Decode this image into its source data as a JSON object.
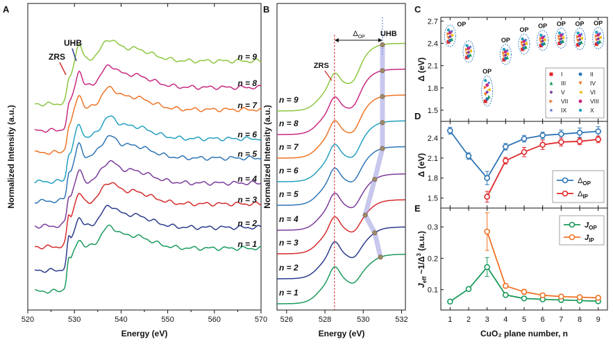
{
  "chart_data": [
    {
      "panel": "A",
      "type": "line",
      "xlabel": "Energy (eV)",
      "ylabel": "Normalized Intensity (a.u.)",
      "xlim": [
        520,
        570
      ],
      "xticks": [
        "520",
        "530",
        "540",
        "550",
        "560",
        "570"
      ],
      "series": [
        {
          "name": "n = 1",
          "color": "#1a9a5c"
        },
        {
          "name": "n = 2",
          "color": "#2b3a8c"
        },
        {
          "name": "n = 3",
          "color": "#d62a2a"
        },
        {
          "name": "n = 4",
          "color": "#7a3a9a"
        },
        {
          "name": "n = 5",
          "color": "#2e75b6"
        },
        {
          "name": "n = 6",
          "color": "#22a0c0"
        },
        {
          "name": "n = 7",
          "color": "#ee7324"
        },
        {
          "name": "n = 8",
          "color": "#c8287f"
        },
        {
          "name": "n = 9",
          "color": "#8cc63f"
        }
      ],
      "annotations": [
        {
          "text": "ZRS",
          "color": "#d62a2a"
        },
        {
          "text": "UHB",
          "color": "#2b3a8c"
        }
      ]
    },
    {
      "panel": "B",
      "type": "line",
      "xlabel": "Energy (eV)",
      "ylabel": "Normalized Intensity (a.u.)",
      "xlim": [
        525.5,
        532.2
      ],
      "xticks": [
        "526",
        "528",
        "530",
        "532"
      ],
      "zrs_energy": 528.5,
      "uhb_energy": 531.0,
      "peak_markers_ev": [
        530.9,
        530.6,
        530.1,
        530.6,
        531.0,
        531.0,
        531.0,
        531.0,
        531.0
      ],
      "annotations": [
        {
          "text": "ZRS",
          "color": "#d62a2a"
        },
        {
          "text": "UHB",
          "color": "#2b3a8c"
        },
        {
          "text": "Δ",
          "sub": "OP"
        }
      ]
    },
    {
      "panel": "C",
      "type": "scatter",
      "xlabel": "",
      "ylabel": "Δ (eV)",
      "xlim": [
        0.5,
        9.5
      ],
      "ylim": [
        1.35,
        2.75
      ],
      "yticks": [
        "1.5",
        "1.8",
        "2.1",
        "2.4",
        "2.7"
      ],
      "group_labels": [
        "OP",
        "OP",
        "OP",
        "OP",
        "OP",
        "OP",
        "OP",
        "OP"
      ],
      "legend": [
        {
          "label": "I",
          "color": "#e0262a",
          "marker": "square"
        },
        {
          "label": "II",
          "color": "#2e75b6",
          "marker": "circle"
        },
        {
          "label": "III",
          "color": "#1a9a5c",
          "marker": "triangle-up"
        },
        {
          "label": "IV",
          "color": "#ee7324",
          "marker": "triangle-down"
        },
        {
          "label": "V",
          "color": "#7a3a9a",
          "marker": "diamond"
        },
        {
          "label": "VI",
          "color": "#f2b705",
          "marker": "triangle-left"
        },
        {
          "label": "VII",
          "color": "#ee7324",
          "marker": "triangle-right"
        },
        {
          "label": "VIII",
          "color": "#c8287f",
          "marker": "circle"
        },
        {
          "label": "IX",
          "color": "#4b6bd0",
          "marker": "star"
        },
        {
          "label": "X",
          "color": "#22a0c0",
          "marker": "pentagon"
        }
      ],
      "groups": [
        {
          "n": 1,
          "center": 2.5,
          "spread": 0.08
        },
        {
          "n": 2,
          "center": 2.29,
          "spread": 0.08
        },
        {
          "n": 3,
          "center": 1.76,
          "spread": 0.14
        },
        {
          "n": 4,
          "center": 2.25,
          "spread": 0.07
        },
        {
          "n": 5,
          "center": 2.39,
          "spread": 0.07
        },
        {
          "n": 6,
          "center": 2.44,
          "spread": 0.07
        },
        {
          "n": 7,
          "center": 2.47,
          "spread": 0.07
        },
        {
          "n": 8,
          "center": 2.46,
          "spread": 0.08
        },
        {
          "n": 9,
          "center": 2.47,
          "spread": 0.08
        }
      ]
    },
    {
      "panel": "D",
      "type": "line",
      "xlabel": "",
      "ylabel": "Δ (eV)",
      "xlim": [
        0.5,
        9.5
      ],
      "ylim": [
        1.35,
        2.65
      ],
      "yticks": [
        "1.5",
        "1.8",
        "2.1",
        "2.4"
      ],
      "legend_position": "bottom-right",
      "series": [
        {
          "name": "Δ",
          "sub": "OP",
          "color": "#2e75b6",
          "x": [
            1,
            2,
            3,
            4,
            5,
            6,
            7,
            8,
            9
          ],
          "values": [
            2.51,
            2.13,
            1.8,
            2.27,
            2.39,
            2.44,
            2.46,
            2.48,
            2.5
          ],
          "errors": [
            0.05,
            0.05,
            0.1,
            0.05,
            0.05,
            0.05,
            0.06,
            0.07,
            0.07
          ]
        },
        {
          "name": "Δ",
          "sub": "IP",
          "color": "#e0262a",
          "x": [
            3,
            4,
            5,
            6,
            7,
            8,
            9
          ],
          "values": [
            1.52,
            2.06,
            2.19,
            2.3,
            2.34,
            2.35,
            2.38
          ],
          "errors": [
            0.08,
            0.05,
            0.07,
            0.07,
            0.06,
            0.05,
            0.05
          ]
        }
      ]
    },
    {
      "panel": "E",
      "type": "line",
      "xlabel": "CuO₂ plane number, n",
      "ylabel": "J_eff ~ 1/Δ³ (a.u.)",
      "xlim": [
        0.5,
        9.5
      ],
      "ylim": [
        0.035,
        0.36
      ],
      "xticks": [
        "1",
        "2",
        "3",
        "4",
        "5",
        "6",
        "7",
        "8",
        "9"
      ],
      "yticks": [
        "0.1",
        "0.2",
        "0.3"
      ],
      "legend_position": "top-right",
      "series": [
        {
          "name": "J",
          "sub": "OP",
          "color": "#1a9a5c",
          "x": [
            1,
            2,
            3,
            4,
            5,
            6,
            7,
            8,
            9
          ],
          "values": [
            0.062,
            0.102,
            0.172,
            0.083,
            0.072,
            0.069,
            0.067,
            0.065,
            0.063
          ],
          "errors": [
            0.004,
            0.006,
            0.03,
            0.005,
            0.004,
            0.004,
            0.004,
            0.004,
            0.004
          ]
        },
        {
          "name": "J",
          "sub": "IP",
          "color": "#ee7324",
          "x": [
            3,
            4,
            5,
            6,
            7,
            8,
            9
          ],
          "values": [
            0.285,
            0.112,
            0.093,
            0.082,
            0.078,
            0.076,
            0.074
          ],
          "errors": [
            0.06,
            0.007,
            0.008,
            0.007,
            0.006,
            0.005,
            0.005
          ]
        }
      ]
    }
  ],
  "panel_labels": [
    "A",
    "B",
    "C",
    "D",
    "E"
  ]
}
